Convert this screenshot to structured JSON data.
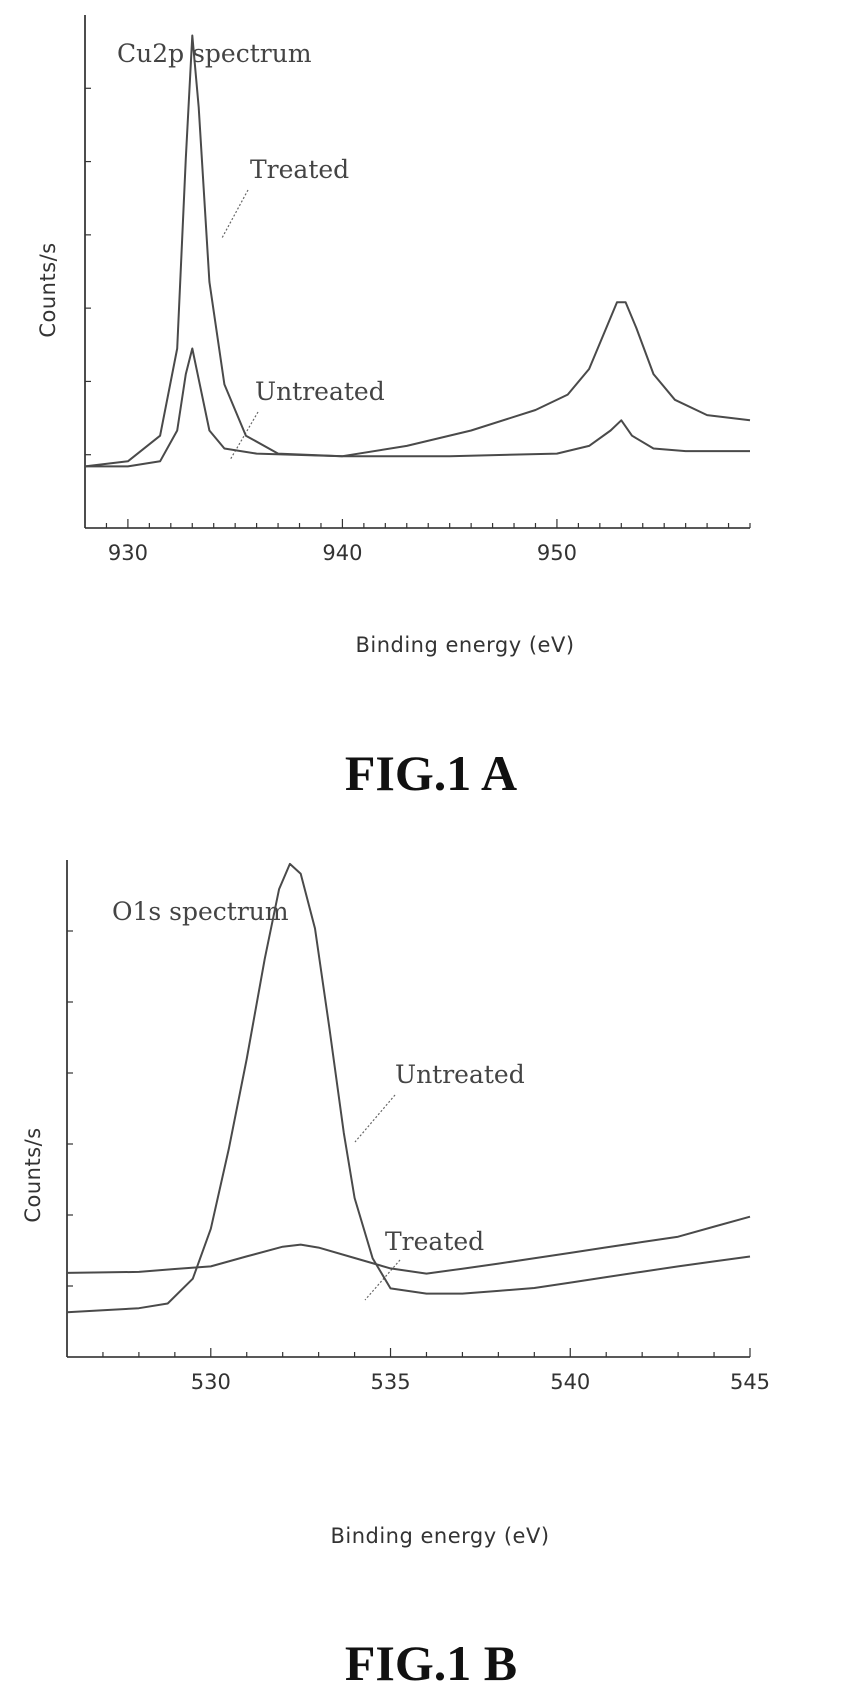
{
  "chart_data": [
    {
      "type": "line",
      "title": "Cu2p spectrum",
      "xlabel": "Binding energy (eV)",
      "ylabel": "Counts/s",
      "xlim": [
        928,
        959
      ],
      "ylim": [
        0,
        1
      ],
      "xticks": [
        930,
        940,
        950
      ],
      "tick_labels": [
        "930",
        "940",
        "950"
      ],
      "caption": "FIG.1 A",
      "series": [
        {
          "name": "Treated",
          "x": [
            928.0,
            930.0,
            931.5,
            932.3,
            932.7,
            933.0,
            933.3,
            933.8,
            934.5,
            935.5,
            937.0,
            940.0,
            943.0,
            946.0,
            949.0,
            950.5,
            951.5,
            952.3,
            952.8,
            953.2,
            953.7,
            954.5,
            955.5,
            957.0,
            959.0
          ],
          "y": [
            0.12,
            0.13,
            0.18,
            0.35,
            0.72,
            0.96,
            0.82,
            0.48,
            0.28,
            0.18,
            0.145,
            0.14,
            0.16,
            0.19,
            0.23,
            0.26,
            0.31,
            0.39,
            0.44,
            0.44,
            0.39,
            0.3,
            0.25,
            0.22,
            0.21
          ]
        },
        {
          "name": "Untreated",
          "x": [
            928.0,
            930.0,
            931.5,
            932.3,
            932.7,
            933.0,
            933.3,
            933.8,
            934.5,
            936.0,
            940.0,
            945.0,
            950.0,
            951.5,
            952.5,
            953.0,
            953.5,
            954.5,
            956.0,
            959.0
          ],
          "y": [
            0.12,
            0.12,
            0.13,
            0.19,
            0.3,
            0.35,
            0.29,
            0.19,
            0.155,
            0.145,
            0.14,
            0.14,
            0.145,
            0.16,
            0.19,
            0.21,
            0.18,
            0.155,
            0.15,
            0.15
          ]
        }
      ]
    },
    {
      "type": "line",
      "title": "O1s spectrum",
      "xlabel": "Binding energy (eV)",
      "ylabel": "Counts/s",
      "xlim": [
        526,
        545
      ],
      "ylim": [
        0,
        1
      ],
      "xticks": [
        530,
        535,
        540,
        545
      ],
      "tick_labels": [
        "530",
        "535",
        "540",
        "545"
      ],
      "caption": "FIG.1 B",
      "series": [
        {
          "name": "Untreated",
          "x": [
            526.0,
            527.0,
            528.0,
            528.8,
            529.5,
            530.0,
            530.5,
            531.0,
            531.5,
            531.9,
            532.2,
            532.5,
            532.9,
            533.3,
            533.7,
            534.0,
            534.5,
            535.0,
            536.0,
            537.0,
            538.0,
            539.0,
            540.0,
            541.0,
            542.0,
            543.0,
            544.0,
            545.0
          ],
          "y": [
            0.09,
            0.095,
            0.1,
            0.11,
            0.16,
            0.26,
            0.42,
            0.6,
            0.8,
            0.94,
            0.99,
            0.97,
            0.86,
            0.66,
            0.45,
            0.32,
            0.2,
            0.14,
            0.13,
            0.13,
            0.135,
            0.14,
            0.15,
            0.16,
            0.17,
            0.18,
            0.19,
            0.2
          ]
        },
        {
          "name": "Treated",
          "x": [
            526.0,
            527.0,
            528.0,
            529.0,
            530.0,
            531.0,
            532.0,
            532.5,
            533.0,
            534.0,
            535.0,
            536.0,
            537.0,
            538.0,
            539.0,
            540.0,
            541.0,
            542.0,
            543.0,
            544.0,
            545.0
          ],
          "y": [
            0.17,
            0.17,
            0.17,
            0.175,
            0.18,
            0.2,
            0.22,
            0.225,
            0.22,
            0.2,
            0.18,
            0.17,
            0.18,
            0.19,
            0.2,
            0.21,
            0.22,
            0.23,
            0.24,
            0.26,
            0.28
          ]
        }
      ]
    }
  ]
}
